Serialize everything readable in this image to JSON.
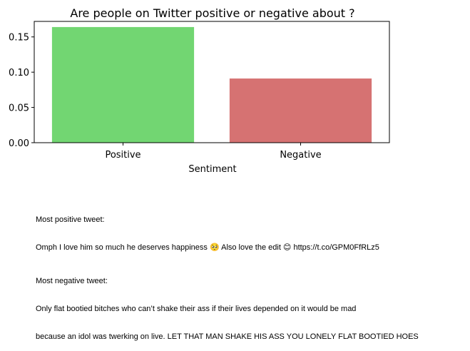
{
  "chart_data": {
    "type": "bar",
    "title": "Are people on Twitter positive or negative about ?",
    "xlabel": "Sentiment",
    "ylabel": "",
    "categories": [
      "Positive",
      "Negative"
    ],
    "values": [
      0.164,
      0.091
    ],
    "colors": [
      "#72d672",
      "#d67272"
    ],
    "ylim": [
      0,
      0.172
    ],
    "yticks": [
      0.0,
      0.05,
      0.1,
      0.15
    ],
    "ytick_labels": [
      "0.00",
      "0.05",
      "0.10",
      "0.15"
    ],
    "grid": false,
    "legend": "none"
  },
  "tweets": {
    "positive_heading": "Most positive tweet:",
    "positive_text": "Omph I love him so much he deserves happiness 🥺 Also love the edit 😊 https://t.co/GPM0FfRLz5",
    "negative_heading": "Most negative tweet:",
    "negative_text_line1": "Only flat bootied bitches who can’t shake their ass if their lives depended on it would be mad",
    "negative_text_line2": "because an idol was twerking on live. LET THAT MAN SHAKE HIS ASS YOU LONELY FLAT BOOTIED HOES"
  }
}
